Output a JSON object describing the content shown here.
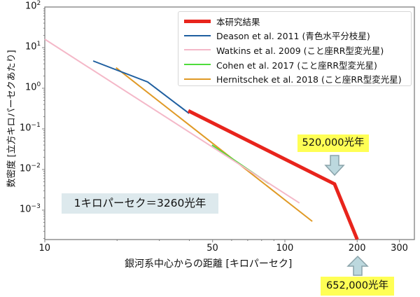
{
  "chart_data": {
    "type": "line",
    "title": "",
    "xlabel": "銀河系中心からの距離 [キロパーセク]",
    "ylabel": "数密度 [立方キロパーセクあたり]",
    "xscale": "log",
    "yscale": "log",
    "xlim": [
      10,
      330
    ],
    "ylim": [
      0.00022,
      100
    ],
    "xticks": [
      {
        "value": 10,
        "label": "10"
      },
      {
        "value": 50,
        "label": "50"
      },
      {
        "value": 100,
        "label": "100"
      },
      {
        "value": 200,
        "label": "200"
      },
      {
        "value": 300,
        "label": "300"
      }
    ],
    "yticks": [
      {
        "value": 100,
        "base": "10",
        "exp": "2"
      },
      {
        "value": 10,
        "base": "10",
        "exp": "1"
      },
      {
        "value": 1,
        "base": "10",
        "exp": "0"
      },
      {
        "value": 0.1,
        "base": "10",
        "exp": "−1"
      },
      {
        "value": 0.01,
        "base": "10",
        "exp": "−2"
      },
      {
        "value": 0.001,
        "base": "10",
        "exp": "−3"
      }
    ],
    "grid": false,
    "legend_position": "upper right",
    "series": [
      {
        "name": "本研究結果",
        "color": "#e8241c",
        "width": 5,
        "x": [
          39.6,
          161,
          200
        ],
        "y": [
          0.28,
          0.0044,
          0.00019
        ]
      },
      {
        "name": "Deason et al. 2011 (青色水平分枝星)",
        "color": "#1f5fa0",
        "width": 2,
        "x": [
          15.9,
          26.8,
          39.9
        ],
        "y": [
          4.7,
          1.43,
          0.24
        ]
      },
      {
        "name": "Watkins et al. 2009 (こと座RR型変光星)",
        "color": "#f4b8c8",
        "width": 2,
        "x": [
          10,
          115
        ],
        "y": [
          16.1,
          0.0015
        ]
      },
      {
        "name": "Cohen et al. 2017 (こと座RR型変光星)",
        "color": "#4fdc3c",
        "width": 2,
        "x": [
          49.7,
          85.8
        ],
        "y": [
          0.04,
          0.0045
        ]
      },
      {
        "name": "Hernitschek et al. 2018 (こと座RR型変光星)",
        "color": "#e09a26",
        "width": 2,
        "x": [
          19.8,
          130
        ],
        "y": [
          3.2,
          0.00053
        ]
      }
    ],
    "annotations": [
      {
        "text": "1キロパーセク＝3260光年",
        "type": "note"
      },
      {
        "text": "520,000光年",
        "type": "callout",
        "points_to_x": 160
      },
      {
        "text": "652,000光年",
        "type": "callout",
        "points_to_x": 200
      }
    ]
  },
  "labels": {
    "ylabel": "数密度 [立方キロパーセクあたり]",
    "xlabel": "銀河系中心からの距離  [キロパーセク]",
    "note": "1キロパーセク＝3260光年",
    "callout_520": "520,000光年",
    "callout_652": "652,000光年"
  },
  "colors": {
    "axis": "#808080",
    "callout_bg": "#ffff55",
    "arrow_fill": "#bcd8de",
    "arrow_stroke": "#8aa3aa",
    "note_bg": "#dde9ed"
  }
}
